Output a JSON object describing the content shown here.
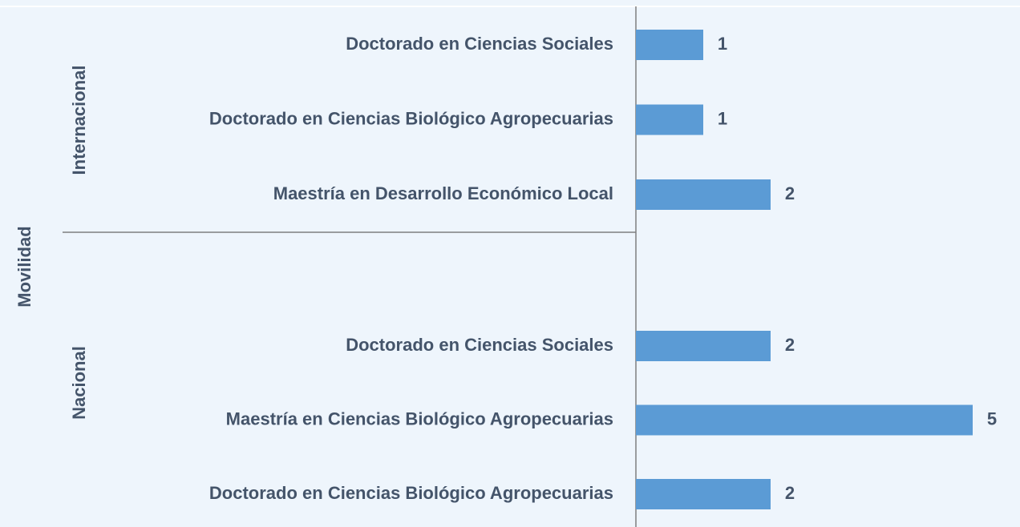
{
  "chart_data": {
    "type": "bar",
    "axis_label": "Movilidad",
    "color": "#5b9bd5",
    "groups": [
      {
        "name": "Internacional",
        "categories": [
          "Doctorado en Ciencias Sociales",
          "Doctorado en Ciencias Biológico Agropecuarias",
          "Maestría en Desarrollo Económico Local"
        ],
        "values": [
          1,
          1,
          2
        ]
      },
      {
        "name": "Nacional",
        "categories": [
          "Doctorado en Ciencias Sociales",
          "Maestría en Ciencias Biológico Agropecuarias",
          "Doctorado en Ciencias Biológico Agropecuarias"
        ],
        "values": [
          2,
          5,
          2
        ]
      }
    ]
  }
}
